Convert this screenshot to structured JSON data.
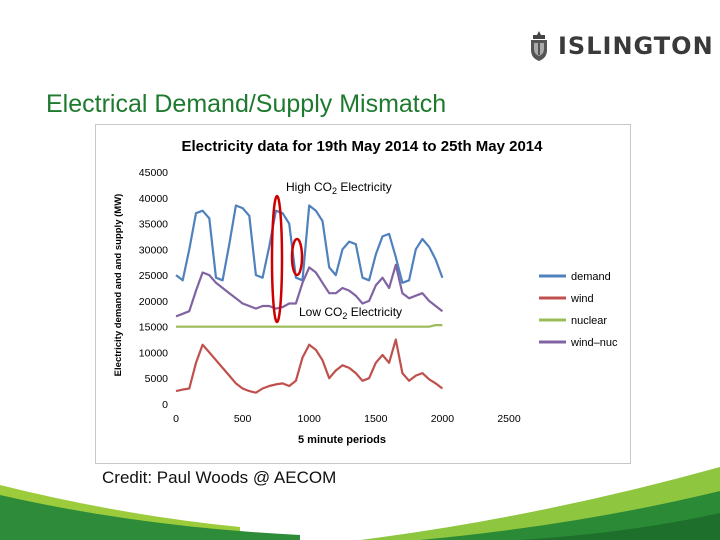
{
  "logo": {
    "text": "ISLINGTON",
    "icon": "crest-icon"
  },
  "slide": {
    "title": "Electrical Demand/Supply Mismatch",
    "credit": "Credit: Paul Woods @ AECOM"
  },
  "colors": {
    "title": "#1e7a2e",
    "demand": "#4f81bd",
    "wind": "#c0504d",
    "nuclear": "#9bbb59",
    "wind_nuc": "#8064a2",
    "annotation": "#cc0000"
  },
  "chart_data": {
    "type": "line",
    "title": "Electricity data for 19th May 2014 to 25th May 2014",
    "xlabel": "5 minute periods",
    "ylabel": "Electricity demand and and supply (MW)",
    "xlim": [
      0,
      2500
    ],
    "ylim": [
      0,
      45000
    ],
    "x_ticks": [
      "0",
      "500",
      "1000",
      "1500",
      "2000",
      "2500"
    ],
    "y_ticks": [
      "0",
      "5000",
      "10000",
      "15000",
      "20000",
      "25000",
      "30000",
      "35000",
      "40000",
      "45000"
    ],
    "grid": false,
    "legend": "right",
    "x": [
      0,
      50,
      100,
      150,
      200,
      250,
      300,
      350,
      400,
      450,
      500,
      550,
      600,
      650,
      700,
      750,
      800,
      850,
      900,
      950,
      1000,
      1050,
      1100,
      1150,
      1200,
      1250,
      1300,
      1350,
      1400,
      1450,
      1500,
      1550,
      1600,
      1650,
      1700,
      1750,
      1800,
      1850,
      1900,
      1950,
      2000
    ],
    "series": [
      {
        "name": "demand",
        "color": "#4f81bd",
        "values": [
          25000,
          24000,
          30000,
          37000,
          37500,
          36000,
          24500,
          24000,
          31000,
          38500,
          38000,
          36500,
          25000,
          24500,
          30500,
          37500,
          37000,
          35000,
          24500,
          24000,
          38500,
          37500,
          35500,
          26500,
          25000,
          30000,
          31500,
          31000,
          24500,
          24000,
          29000,
          32500,
          33000,
          28500,
          23500,
          24000,
          30000,
          32000,
          30500,
          28000,
          24500
        ]
      },
      {
        "name": "wind",
        "color": "#c0504d",
        "values": [
          2500,
          2800,
          3000,
          8000,
          11500,
          10000,
          8500,
          7000,
          5500,
          4000,
          3000,
          2500,
          2200,
          3000,
          3500,
          3800,
          4000,
          3500,
          4500,
          9000,
          11500,
          10500,
          8500,
          5000,
          6500,
          7500,
          7000,
          6000,
          4500,
          5000,
          8000,
          9500,
          8000,
          12500,
          6000,
          4500,
          5500,
          6000,
          4800,
          4000,
          3000
        ]
      },
      {
        "name": "nuclear",
        "color": "#9bbb59",
        "values": [
          15000,
          15000,
          15000,
          15000,
          15000,
          15000,
          15000,
          15000,
          15000,
          15000,
          15000,
          15000,
          15000,
          15000,
          15000,
          15000,
          15000,
          15000,
          15000,
          15000,
          15000,
          15000,
          15000,
          15000,
          15000,
          15000,
          15000,
          15000,
          15000,
          15000,
          15000,
          15000,
          15000,
          15000,
          15000,
          15000,
          15000,
          15000,
          15000,
          15300,
          15300
        ]
      },
      {
        "name": "wind–nuc",
        "color": "#8064a2",
        "values": [
          17000,
          17500,
          18000,
          22000,
          25500,
          25000,
          23500,
          22500,
          21500,
          20500,
          19500,
          19000,
          18500,
          19000,
          19000,
          18500,
          18800,
          19500,
          19500,
          23500,
          26500,
          25500,
          23500,
          21500,
          21500,
          22500,
          22000,
          21000,
          19500,
          20000,
          23000,
          24500,
          22500,
          27000,
          21500,
          20500,
          21000,
          21500,
          20000,
          19000,
          18000
        ]
      }
    ],
    "annotations": [
      {
        "text_pre": "High CO",
        "sub": "2",
        "text_post": " Electricity"
      },
      {
        "text_pre": "Low CO",
        "sub": "2",
        "text_post": " Electricity"
      }
    ]
  }
}
